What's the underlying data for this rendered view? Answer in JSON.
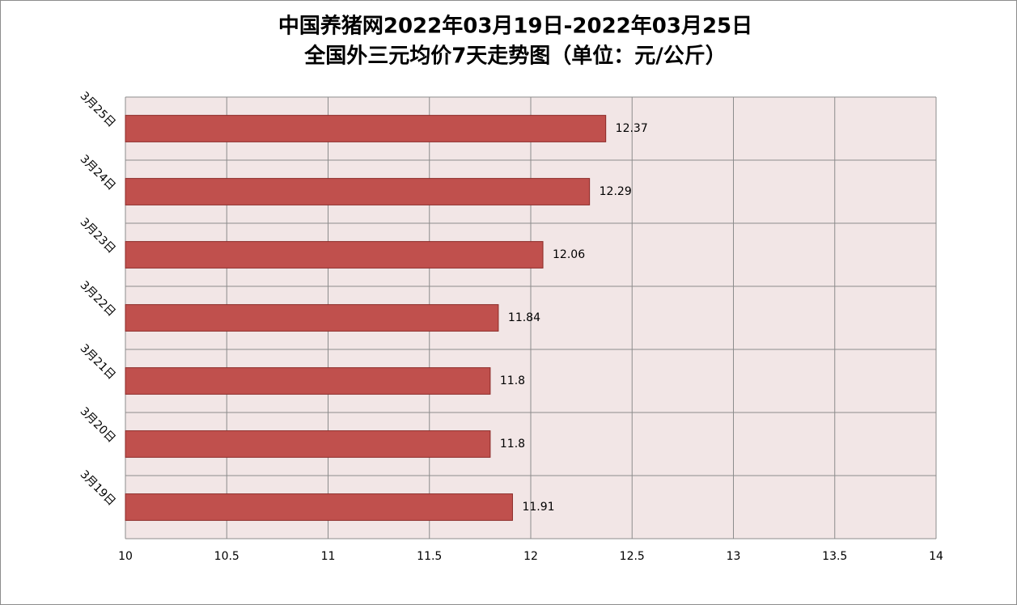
{
  "chart_data": {
    "type": "hbar",
    "title": [
      "中国养猪网2022年03月19日-2022年03月25日",
      "全国外三元均价7天走势图（单位：元/公斤）"
    ],
    "categories": [
      "3月19日",
      "3月20日",
      "3月21日",
      "3月22日",
      "3月23日",
      "3月24日",
      "3月25日"
    ],
    "values": [
      11.91,
      11.8,
      11.8,
      11.84,
      12.06,
      12.29,
      12.37
    ],
    "color": "#c0504d",
    "xlim": [
      10,
      14
    ],
    "xticks": [
      10,
      10.5,
      11,
      11.5,
      12,
      12.5,
      13,
      13.5,
      14
    ],
    "grid": true
  }
}
